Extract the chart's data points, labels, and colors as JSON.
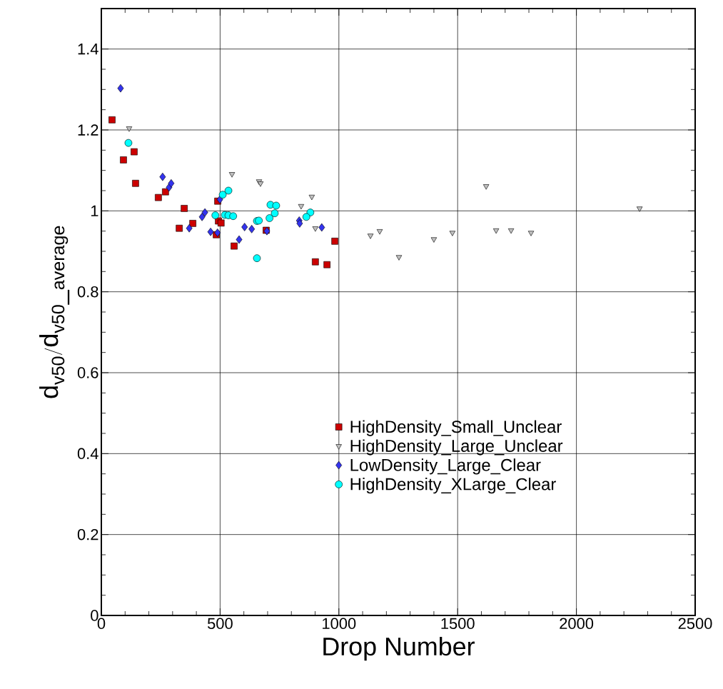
{
  "chart_data": {
    "type": "scatter",
    "xlabel": "Drop Number",
    "ylabel": "\\mathrm{d}_{\\mathrm{v50}}/\\mathrm{d}_{\\mathrm{v50\\_average}}",
    "xlim": [
      0,
      2500
    ],
    "ylim": [
      0,
      1.5
    ],
    "xticks": [
      0,
      500,
      1000,
      1500,
      2000,
      2500
    ],
    "yticks": [
      0,
      0.2,
      0.4,
      0.6,
      0.8,
      1,
      1.2,
      1.4
    ],
    "grid": true,
    "legend": "bottom",
    "series": [
      {
        "name": "HighDensity_Small_Unclear",
        "color": "#cc0000",
        "marker": "square",
        "x": [
          45,
          93,
          138,
          144,
          240,
          270,
          349,
          328,
          385,
          484,
          493,
          490,
          559,
          694,
          901,
          950,
          983,
          504
        ],
        "values": [
          1.225,
          1.126,
          1.146,
          1.068,
          1.033,
          1.047,
          1.006,
          0.957,
          0.969,
          0.941,
          0.975,
          1.024,
          0.913,
          0.952,
          0.874,
          0.867,
          0.925,
          0.97
        ]
      },
      {
        "name": "HighDensity_Large_Unclear",
        "color": "#c0c0c0",
        "marker": "triangle",
        "x": [
          117,
          550,
          664,
          670,
          841,
          886,
          901,
          1133,
          1172,
          1253,
          1400,
          1478,
          1620,
          1662,
          1725,
          1809,
          2266
        ],
        "values": [
          1.204,
          1.091,
          1.073,
          1.068,
          1.012,
          1.035,
          0.957,
          0.939,
          0.95,
          0.886,
          0.93,
          0.946,
          1.061,
          0.952,
          0.952,
          0.946,
          1.006
        ]
      },
      {
        "name": "LowDensity_Large_Clear",
        "color": "#3333ee",
        "marker": "diamond",
        "x": [
          81,
          258,
          285,
          294,
          370,
          424,
          436,
          460,
          489,
          499,
          580,
          603,
          633,
          697,
          833,
          835,
          928
        ],
        "values": [
          1.303,
          1.084,
          1.058,
          1.068,
          0.957,
          0.985,
          0.996,
          0.948,
          0.946,
          1.028,
          0.929,
          0.96,
          0.955,
          0.95,
          0.976,
          0.969,
          0.959
        ]
      },
      {
        "name": "HighDensity_XLarge_Clear",
        "color": "#00ffff",
        "marker": "circle",
        "x": [
          114,
          535,
          511,
          480,
          520,
          535,
          555,
          655,
          663,
          655,
          712,
          736,
          730,
          708,
          880,
          863
        ],
        "values": [
          1.168,
          1.05,
          1.04,
          0.989,
          0.99,
          0.989,
          0.987,
          0.975,
          0.976,
          0.883,
          1.015,
          1.013,
          0.994,
          0.982,
          0.996,
          0.985
        ]
      }
    ]
  }
}
